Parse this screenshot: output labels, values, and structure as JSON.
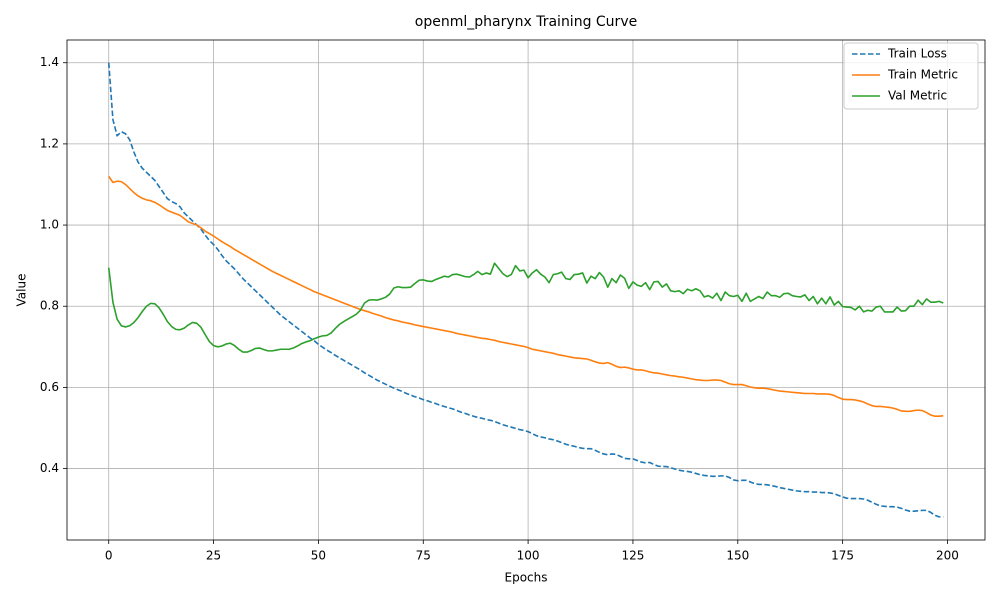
{
  "chart_data": {
    "type": "line",
    "title": "openml_pharynx Training Curve",
    "x_label": "Epochs",
    "y_label": "Value",
    "xlim": [
      -9.95,
      208.95
    ],
    "ylim": [
      0.224,
      1.456
    ],
    "xticks": [
      0,
      25,
      50,
      75,
      100,
      125,
      150,
      175,
      200
    ],
    "yticks": [
      0.4,
      0.6,
      0.8,
      {
        "value": 1,
        "label": "1.0"
      },
      1.2,
      1.4
    ],
    "grid": true,
    "legend": "upper-right",
    "x": [
      0,
      1,
      2,
      3,
      4,
      5,
      6,
      7,
      8,
      9,
      10,
      11,
      12,
      13,
      14,
      15,
      16,
      17,
      18,
      19,
      20,
      21,
      22,
      23,
      24,
      25,
      26,
      27,
      28,
      29,
      30,
      31,
      32,
      33,
      34,
      35,
      36,
      37,
      38,
      39,
      40,
      41,
      42,
      43,
      44,
      45,
      46,
      47,
      48,
      49,
      50,
      51,
      52,
      53,
      54,
      55,
      56,
      57,
      58,
      59,
      60,
      61,
      62,
      63,
      64,
      65,
      66,
      67,
      68,
      69,
      70,
      71,
      72,
      73,
      74,
      75,
      76,
      77,
      78,
      79,
      80,
      81,
      82,
      83,
      84,
      85,
      86,
      87,
      88,
      89,
      90,
      91,
      92,
      93,
      94,
      95,
      96,
      97,
      98,
      99,
      100,
      101,
      102,
      103,
      104,
      105,
      106,
      107,
      108,
      109,
      110,
      111,
      112,
      113,
      114,
      115,
      116,
      117,
      118,
      119,
      120,
      121,
      122,
      123,
      124,
      125,
      126,
      127,
      128,
      129,
      130,
      131,
      132,
      133,
      134,
      135,
      136,
      137,
      138,
      139,
      140,
      141,
      142,
      143,
      144,
      145,
      146,
      147,
      148,
      149,
      150,
      151,
      152,
      153,
      154,
      155,
      156,
      157,
      158,
      159,
      160,
      161,
      162,
      163,
      164,
      165,
      166,
      167,
      168,
      169,
      170,
      171,
      172,
      173,
      174,
      175,
      176,
      177,
      178,
      179,
      180,
      181,
      182,
      183,
      184,
      185,
      186,
      187,
      188,
      189,
      190,
      191,
      192,
      193,
      194,
      195,
      196,
      197,
      198,
      199
    ],
    "series": [
      {
        "name": "Train Loss",
        "color": "#1f77b4",
        "linestyle": "dashed",
        "values": [
          1.4,
          1.26,
          1.22,
          1.23,
          1.225,
          1.21,
          1.18,
          1.155,
          1.14,
          1.13,
          1.12,
          1.11,
          1.095,
          1.08,
          1.065,
          1.058,
          1.053,
          1.045,
          1.03,
          1.02,
          1.01,
          1.0,
          0.99,
          0.975,
          0.962,
          0.952,
          0.94,
          0.925,
          0.912,
          0.902,
          0.892,
          0.88,
          0.868,
          0.858,
          0.848,
          0.838,
          0.828,
          0.818,
          0.808,
          0.798,
          0.788,
          0.778,
          0.77,
          0.762,
          0.754,
          0.746,
          0.738,
          0.73,
          0.722,
          0.715,
          0.706,
          0.699,
          0.692,
          0.686,
          0.679,
          0.673,
          0.667,
          0.661,
          0.655,
          0.649,
          0.643,
          0.636,
          0.63,
          0.624,
          0.618,
          0.613,
          0.608,
          0.603,
          0.598,
          0.594,
          0.59,
          0.585,
          0.581,
          0.577,
          0.574,
          0.57,
          0.567,
          0.563,
          0.56,
          0.556,
          0.553,
          0.55,
          0.547,
          0.543,
          0.539,
          0.536,
          0.532,
          0.529,
          0.526,
          0.524,
          0.521,
          0.519,
          0.516,
          0.512,
          0.508,
          0.505,
          0.502,
          0.499,
          0.496,
          0.494,
          0.491,
          0.486,
          0.481,
          0.478,
          0.476,
          0.473,
          0.471,
          0.468,
          0.464,
          0.46,
          0.457,
          0.455,
          0.452,
          0.45,
          0.449,
          0.449,
          0.445,
          0.44,
          0.436,
          0.434,
          0.436,
          0.435,
          0.43,
          0.425,
          0.424,
          0.424,
          0.42,
          0.416,
          0.414,
          0.415,
          0.41,
          0.406,
          0.405,
          0.405,
          0.402,
          0.399,
          0.396,
          0.394,
          0.393,
          0.391,
          0.388,
          0.385,
          0.383,
          0.382,
          0.381,
          0.381,
          0.382,
          0.382,
          0.378,
          0.372,
          0.37,
          0.371,
          0.371,
          0.367,
          0.363,
          0.361,
          0.361,
          0.36,
          0.358,
          0.356,
          0.353,
          0.351,
          0.349,
          0.347,
          0.345,
          0.344,
          0.343,
          0.343,
          0.342,
          0.342,
          0.341,
          0.341,
          0.34,
          0.338,
          0.334,
          0.33,
          0.327,
          0.326,
          0.326,
          0.326,
          0.325,
          0.322,
          0.317,
          0.312,
          0.308,
          0.307,
          0.306,
          0.306,
          0.305,
          0.302,
          0.298,
          0.295,
          0.295,
          0.296,
          0.297,
          0.297,
          0.292,
          0.285,
          0.281,
          0.281
        ]
      },
      {
        "name": "Train Metric",
        "color": "#ff7f0e",
        "linestyle": "solid",
        "values": [
          1.12,
          1.105,
          1.108,
          1.107,
          1.1,
          1.09,
          1.08,
          1.072,
          1.066,
          1.062,
          1.06,
          1.056,
          1.05,
          1.043,
          1.036,
          1.032,
          1.028,
          1.024,
          1.016,
          1.008,
          1.004,
          1.0,
          0.993,
          0.985,
          0.979,
          0.973,
          0.966,
          0.959,
          0.953,
          0.947,
          0.94,
          0.934,
          0.928,
          0.922,
          0.916,
          0.91,
          0.904,
          0.898,
          0.892,
          0.886,
          0.881,
          0.876,
          0.871,
          0.866,
          0.861,
          0.856,
          0.851,
          0.846,
          0.841,
          0.836,
          0.832,
          0.828,
          0.824,
          0.82,
          0.816,
          0.812,
          0.808,
          0.804,
          0.8,
          0.796,
          0.792,
          0.789,
          0.786,
          0.782,
          0.779,
          0.776,
          0.772,
          0.769,
          0.766,
          0.764,
          0.761,
          0.759,
          0.757,
          0.754,
          0.752,
          0.75,
          0.748,
          0.746,
          0.744,
          0.742,
          0.74,
          0.738,
          0.736,
          0.733,
          0.731,
          0.729,
          0.727,
          0.725,
          0.723,
          0.721,
          0.72,
          0.718,
          0.716,
          0.713,
          0.711,
          0.709,
          0.707,
          0.705,
          0.703,
          0.701,
          0.698,
          0.694,
          0.692,
          0.69,
          0.688,
          0.686,
          0.684,
          0.681,
          0.679,
          0.677,
          0.675,
          0.673,
          0.672,
          0.671,
          0.67,
          0.667,
          0.663,
          0.66,
          0.659,
          0.661,
          0.657,
          0.652,
          0.649,
          0.65,
          0.648,
          0.645,
          0.643,
          0.643,
          0.641,
          0.638,
          0.636,
          0.635,
          0.633,
          0.631,
          0.629,
          0.628,
          0.626,
          0.625,
          0.623,
          0.621,
          0.619,
          0.618,
          0.617,
          0.617,
          0.618,
          0.618,
          0.617,
          0.613,
          0.609,
          0.607,
          0.607,
          0.607,
          0.604,
          0.601,
          0.599,
          0.598,
          0.598,
          0.597,
          0.595,
          0.593,
          0.591,
          0.59,
          0.589,
          0.588,
          0.587,
          0.586,
          0.585,
          0.585,
          0.585,
          0.584,
          0.584,
          0.584,
          0.583,
          0.58,
          0.575,
          0.571,
          0.57,
          0.57,
          0.569,
          0.567,
          0.564,
          0.559,
          0.555,
          0.553,
          0.553,
          0.552,
          0.551,
          0.549,
          0.546,
          0.542,
          0.541,
          0.541,
          0.543,
          0.544,
          0.543,
          0.538,
          0.532,
          0.529,
          0.529,
          0.53
        ]
      },
      {
        "name": "Val Metric",
        "color": "#2ca02c",
        "linestyle": "solid",
        "values": [
          0.895,
          0.81,
          0.768,
          0.752,
          0.749,
          0.752,
          0.76,
          0.772,
          0.787,
          0.8,
          0.807,
          0.806,
          0.796,
          0.78,
          0.762,
          0.75,
          0.743,
          0.742,
          0.746,
          0.754,
          0.76,
          0.758,
          0.748,
          0.73,
          0.713,
          0.703,
          0.7,
          0.702,
          0.707,
          0.709,
          0.703,
          0.694,
          0.687,
          0.687,
          0.691,
          0.696,
          0.697,
          0.693,
          0.69,
          0.69,
          0.692,
          0.694,
          0.694,
          0.694,
          0.697,
          0.702,
          0.708,
          0.712,
          0.715,
          0.72,
          0.724,
          0.727,
          0.728,
          0.734,
          0.745,
          0.755,
          0.762,
          0.768,
          0.774,
          0.78,
          0.79,
          0.808,
          0.815,
          0.816,
          0.815,
          0.818,
          0.822,
          0.83,
          0.845,
          0.848,
          0.846,
          0.846,
          0.847,
          0.856,
          0.864,
          0.865,
          0.862,
          0.861,
          0.866,
          0.87,
          0.874,
          0.872,
          0.878,
          0.879,
          0.876,
          0.873,
          0.872,
          0.878,
          0.886,
          0.878,
          0.882,
          0.879,
          0.906,
          0.893,
          0.88,
          0.873,
          0.878,
          0.9,
          0.887,
          0.889,
          0.87,
          0.882,
          0.89,
          0.879,
          0.872,
          0.858,
          0.878,
          0.88,
          0.884,
          0.868,
          0.866,
          0.878,
          0.879,
          0.882,
          0.857,
          0.874,
          0.868,
          0.883,
          0.872,
          0.847,
          0.868,
          0.858,
          0.877,
          0.869,
          0.844,
          0.86,
          0.852,
          0.849,
          0.858,
          0.841,
          0.86,
          0.861,
          0.847,
          0.855,
          0.838,
          0.836,
          0.838,
          0.831,
          0.842,
          0.838,
          0.843,
          0.838,
          0.823,
          0.826,
          0.82,
          0.832,
          0.814,
          0.835,
          0.826,
          0.824,
          0.827,
          0.812,
          0.832,
          0.812,
          0.818,
          0.824,
          0.819,
          0.835,
          0.826,
          0.826,
          0.822,
          0.831,
          0.832,
          0.826,
          0.824,
          0.823,
          0.828,
          0.814,
          0.824,
          0.806,
          0.82,
          0.806,
          0.823,
          0.803,
          0.812,
          0.799,
          0.798,
          0.797,
          0.791,
          0.8,
          0.786,
          0.79,
          0.788,
          0.798,
          0.8,
          0.786,
          0.786,
          0.786,
          0.798,
          0.788,
          0.789,
          0.8,
          0.8,
          0.815,
          0.804,
          0.818,
          0.81,
          0.81,
          0.812,
          0.808
        ]
      }
    ]
  }
}
